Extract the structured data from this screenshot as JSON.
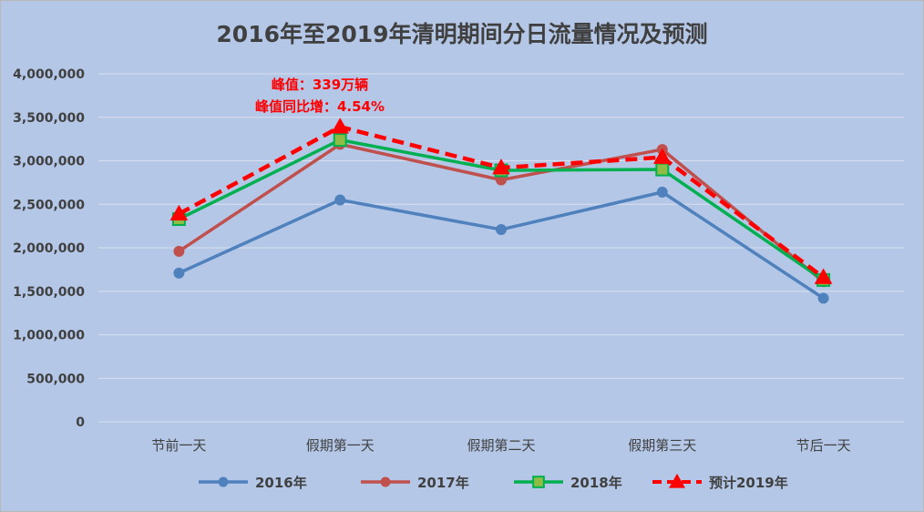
{
  "chart_data": {
    "type": "line",
    "title": "2016年至2019年清明期间分日流量情况及预测",
    "categories": [
      "节前一天",
      "假期第一天",
      "假期第二天",
      "假期第三天",
      "节后一天"
    ],
    "ylim": [
      0,
      4000000
    ],
    "yticks": [
      "0",
      "500,000",
      "1,000,000",
      "1,500,000",
      "2,000,000",
      "2,500,000",
      "3,000,000",
      "3,500,000",
      "4,000,000"
    ],
    "grid": true,
    "legend_position": "bottom",
    "series": [
      {
        "name": "2016年",
        "values": [
          1710000,
          2550000,
          2210000,
          2640000,
          1420000
        ],
        "color": "#4f81bd",
        "marker": "circle",
        "dashed": false
      },
      {
        "name": "2017年",
        "values": [
          1960000,
          3190000,
          2780000,
          3130000,
          1610000
        ],
        "color": "#c0504d",
        "marker": "circle",
        "dashed": false
      },
      {
        "name": "2018年",
        "values": [
          2330000,
          3240000,
          2890000,
          2900000,
          1630000
        ],
        "color": "#00b050",
        "marker": "square",
        "dashed": false
      },
      {
        "name": "预计2019年",
        "values": [
          2390000,
          3390000,
          2920000,
          3040000,
          1660000
        ],
        "color": "#ff0000",
        "marker": "triangle",
        "dashed": true
      }
    ],
    "annotations": [
      "峰值：339万辆",
      "峰值同比增：4.54%"
    ]
  }
}
